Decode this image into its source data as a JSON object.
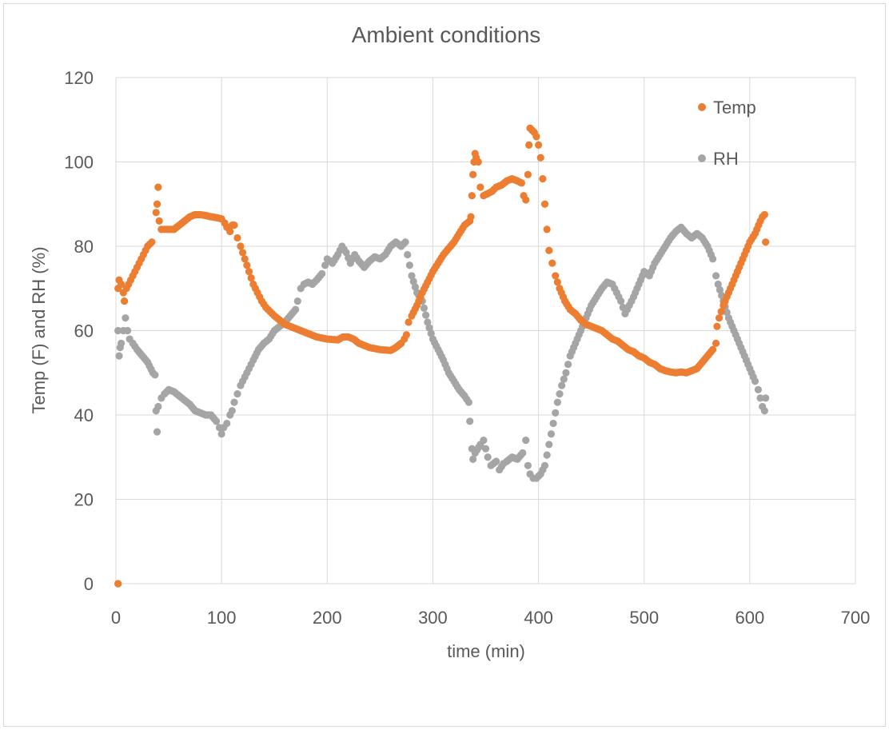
{
  "chart_data": {
    "type": "scatter",
    "title": "Ambient conditions",
    "xlabel": "time (min)",
    "ylabel": "Temp (F) and RH (%)",
    "xlim": [
      0,
      700
    ],
    "ylim": [
      0,
      120
    ],
    "xticks": [
      0,
      100,
      200,
      300,
      400,
      500,
      600,
      700
    ],
    "yticks": [
      0,
      20,
      40,
      60,
      80,
      100,
      120
    ],
    "grid": true,
    "legend_position": "top-right",
    "series": [
      {
        "name": "Temp",
        "color": "#ED7D31",
        "points": [
          [
            2,
            0
          ],
          [
            2,
            70
          ],
          [
            3,
            72
          ],
          [
            5,
            71
          ],
          [
            7,
            69
          ],
          [
            8,
            67
          ],
          [
            10,
            70
          ],
          [
            14,
            72
          ],
          [
            18,
            74
          ],
          [
            22,
            76
          ],
          [
            26,
            78
          ],
          [
            30,
            80
          ],
          [
            34,
            81
          ],
          [
            38,
            88
          ],
          [
            39,
            90
          ],
          [
            40,
            94
          ],
          [
            41,
            86
          ],
          [
            43,
            84
          ],
          [
            46,
            84
          ],
          [
            50,
            84
          ],
          [
            55,
            84
          ],
          [
            60,
            85
          ],
          [
            65,
            86
          ],
          [
            70,
            87
          ],
          [
            75,
            87.5
          ],
          [
            80,
            87.5
          ],
          [
            85,
            87.3
          ],
          [
            90,
            87
          ],
          [
            95,
            86.8
          ],
          [
            100,
            86.5
          ],
          [
            103,
            85.5
          ],
          [
            105,
            84.5
          ],
          [
            108,
            83.5
          ],
          [
            110,
            85
          ],
          [
            112,
            85
          ],
          [
            115,
            82
          ],
          [
            118,
            80
          ],
          [
            122,
            77
          ],
          [
            126,
            74
          ],
          [
            130,
            71
          ],
          [
            134,
            69
          ],
          [
            138,
            67
          ],
          [
            142,
            65.5
          ],
          [
            146,
            64.5
          ],
          [
            150,
            63.5
          ],
          [
            155,
            62.5
          ],
          [
            160,
            61.5
          ],
          [
            170,
            60.5
          ],
          [
            180,
            59.5
          ],
          [
            190,
            58.5
          ],
          [
            200,
            58
          ],
          [
            210,
            57.8
          ],
          [
            215,
            58.5
          ],
          [
            220,
            58.5
          ],
          [
            225,
            58
          ],
          [
            230,
            57
          ],
          [
            240,
            56
          ],
          [
            250,
            55.5
          ],
          [
            260,
            55.3
          ],
          [
            265,
            56
          ],
          [
            270,
            57
          ],
          [
            273,
            58
          ],
          [
            275,
            59
          ],
          [
            277,
            62
          ],
          [
            280,
            63.5
          ],
          [
            285,
            66
          ],
          [
            290,
            69
          ],
          [
            295,
            71.5
          ],
          [
            300,
            74
          ],
          [
            305,
            76
          ],
          [
            310,
            78
          ],
          [
            315,
            79.5
          ],
          [
            320,
            81
          ],
          [
            325,
            83
          ],
          [
            330,
            85
          ],
          [
            335,
            86
          ],
          [
            336,
            87
          ],
          [
            337,
            92
          ],
          [
            338,
            97
          ],
          [
            339,
            100
          ],
          [
            340,
            102
          ],
          [
            341,
            101
          ],
          [
            343,
            100
          ],
          [
            345,
            94
          ],
          [
            348,
            92
          ],
          [
            352,
            92.5
          ],
          [
            356,
            93
          ],
          [
            360,
            94
          ],
          [
            365,
            94.5
          ],
          [
            370,
            95.5
          ],
          [
            375,
            96
          ],
          [
            380,
            95.5
          ],
          [
            384,
            95
          ],
          [
            386,
            92
          ],
          [
            388,
            91
          ],
          [
            390,
            97
          ],
          [
            391,
            104
          ],
          [
            392,
            108
          ],
          [
            394,
            107.5
          ],
          [
            396,
            107
          ],
          [
            398,
            106
          ],
          [
            400,
            104
          ],
          [
            402,
            101
          ],
          [
            404,
            96
          ],
          [
            406,
            90
          ],
          [
            408,
            84
          ],
          [
            410,
            79
          ],
          [
            413,
            76
          ],
          [
            416,
            73
          ],
          [
            420,
            70
          ],
          [
            425,
            67
          ],
          [
            430,
            65
          ],
          [
            435,
            64
          ],
          [
            440,
            62.5
          ],
          [
            445,
            61.5
          ],
          [
            450,
            61
          ],
          [
            455,
            60.5
          ],
          [
            460,
            60
          ],
          [
            465,
            59
          ],
          [
            470,
            58
          ],
          [
            475,
            57.5
          ],
          [
            480,
            56.5
          ],
          [
            485,
            55.5
          ],
          [
            490,
            55
          ],
          [
            495,
            54
          ],
          [
            500,
            53.5
          ],
          [
            505,
            52.5
          ],
          [
            510,
            52
          ],
          [
            515,
            51
          ],
          [
            520,
            50.5
          ],
          [
            525,
            50.2
          ],
          [
            530,
            50
          ],
          [
            535,
            50.2
          ],
          [
            540,
            50
          ],
          [
            545,
            50.5
          ],
          [
            550,
            51
          ],
          [
            555,
            52.5
          ],
          [
            560,
            54
          ],
          [
            565,
            55.5
          ],
          [
            568,
            57
          ],
          [
            569,
            61
          ],
          [
            571,
            63
          ],
          [
            575,
            66
          ],
          [
            580,
            69
          ],
          [
            585,
            72
          ],
          [
            590,
            75
          ],
          [
            595,
            78
          ],
          [
            600,
            81
          ],
          [
            605,
            83
          ],
          [
            610,
            86
          ],
          [
            612,
            87
          ],
          [
            614,
            87.5
          ],
          [
            615,
            81
          ]
        ]
      },
      {
        "name": "RH",
        "color": "#A5A5A5",
        "points": [
          [
            2,
            0
          ],
          [
            2,
            60
          ],
          [
            3,
            54
          ],
          [
            4,
            56
          ],
          [
            5,
            57
          ],
          [
            7,
            60
          ],
          [
            9,
            63
          ],
          [
            11,
            60
          ],
          [
            13,
            58
          ],
          [
            16,
            57
          ],
          [
            20,
            55.5
          ],
          [
            25,
            54
          ],
          [
            30,
            52.5
          ],
          [
            35,
            50
          ],
          [
            37,
            49.5
          ],
          [
            38,
            41
          ],
          [
            39,
            36
          ],
          [
            40,
            42
          ],
          [
            43,
            44
          ],
          [
            46,
            45
          ],
          [
            50,
            46
          ],
          [
            55,
            45.5
          ],
          [
            60,
            44.5
          ],
          [
            65,
            43.5
          ],
          [
            70,
            42.5
          ],
          [
            75,
            41
          ],
          [
            80,
            40.5
          ],
          [
            85,
            40
          ],
          [
            90,
            40
          ],
          [
            95,
            38.5
          ],
          [
            98,
            37
          ],
          [
            100,
            35.5
          ],
          [
            102,
            37
          ],
          [
            105,
            38
          ],
          [
            108,
            40
          ],
          [
            110,
            41
          ],
          [
            112,
            43
          ],
          [
            115,
            45
          ],
          [
            118,
            47
          ],
          [
            122,
            49
          ],
          [
            126,
            51
          ],
          [
            130,
            53
          ],
          [
            135,
            55.5
          ],
          [
            140,
            57
          ],
          [
            145,
            58
          ],
          [
            150,
            60
          ],
          [
            155,
            61
          ],
          [
            160,
            62
          ],
          [
            165,
            63.5
          ],
          [
            170,
            65
          ],
          [
            172,
            67
          ],
          [
            175,
            70
          ],
          [
            178,
            71
          ],
          [
            182,
            71.5
          ],
          [
            186,
            71
          ],
          [
            190,
            72
          ],
          [
            195,
            73.5
          ],
          [
            198,
            75.5
          ],
          [
            200,
            77
          ],
          [
            205,
            76
          ],
          [
            210,
            78
          ],
          [
            214,
            80
          ],
          [
            218,
            78.5
          ],
          [
            222,
            76
          ],
          [
            226,
            78
          ],
          [
            230,
            76.5
          ],
          [
            235,
            75
          ],
          [
            240,
            76.5
          ],
          [
            245,
            77.5
          ],
          [
            250,
            77
          ],
          [
            255,
            78
          ],
          [
            260,
            80
          ],
          [
            265,
            81
          ],
          [
            270,
            80
          ],
          [
            274,
            81
          ],
          [
            276,
            78
          ],
          [
            280,
            73
          ],
          [
            285,
            69
          ],
          [
            290,
            67
          ],
          [
            295,
            62
          ],
          [
            300,
            58
          ],
          [
            305,
            55.5
          ],
          [
            310,
            53
          ],
          [
            315,
            50
          ],
          [
            320,
            48
          ],
          [
            325,
            46
          ],
          [
            330,
            44.5
          ],
          [
            334,
            43
          ],
          [
            335,
            38.5
          ],
          [
            337,
            32
          ],
          [
            338,
            29.5
          ],
          [
            340,
            31
          ],
          [
            345,
            33
          ],
          [
            348,
            34
          ],
          [
            352,
            30
          ],
          [
            355,
            28
          ],
          [
            360,
            29
          ],
          [
            363,
            27
          ],
          [
            367,
            28.5
          ],
          [
            370,
            29
          ],
          [
            375,
            30
          ],
          [
            380,
            29.5
          ],
          [
            385,
            31
          ],
          [
            388,
            34
          ],
          [
            390,
            28
          ],
          [
            392,
            26
          ],
          [
            395,
            25
          ],
          [
            398,
            25
          ],
          [
            402,
            26
          ],
          [
            406,
            28
          ],
          [
            410,
            33
          ],
          [
            414,
            38
          ],
          [
            418,
            43
          ],
          [
            422,
            47
          ],
          [
            426,
            50
          ],
          [
            430,
            54
          ],
          [
            435,
            57
          ],
          [
            440,
            60
          ],
          [
            445,
            63
          ],
          [
            450,
            66
          ],
          [
            455,
            68
          ],
          [
            460,
            70
          ],
          [
            465,
            71.5
          ],
          [
            470,
            71
          ],
          [
            474,
            69
          ],
          [
            478,
            67
          ],
          [
            482,
            64
          ],
          [
            486,
            66
          ],
          [
            490,
            68
          ],
          [
            495,
            71
          ],
          [
            500,
            74
          ],
          [
            505,
            73
          ],
          [
            510,
            76
          ],
          [
            515,
            78
          ],
          [
            520,
            80
          ],
          [
            525,
            82
          ],
          [
            530,
            83.5
          ],
          [
            535,
            84.5
          ],
          [
            540,
            83
          ],
          [
            545,
            82
          ],
          [
            550,
            83
          ],
          [
            555,
            82
          ],
          [
            560,
            80
          ],
          [
            565,
            77
          ],
          [
            568,
            73
          ],
          [
            570,
            71
          ],
          [
            575,
            67
          ],
          [
            580,
            63
          ],
          [
            585,
            60
          ],
          [
            590,
            57
          ],
          [
            595,
            54
          ],
          [
            600,
            51
          ],
          [
            605,
            48
          ],
          [
            608,
            46
          ],
          [
            610,
            44
          ],
          [
            612,
            42
          ],
          [
            614,
            41
          ],
          [
            615,
            44
          ]
        ]
      }
    ]
  }
}
